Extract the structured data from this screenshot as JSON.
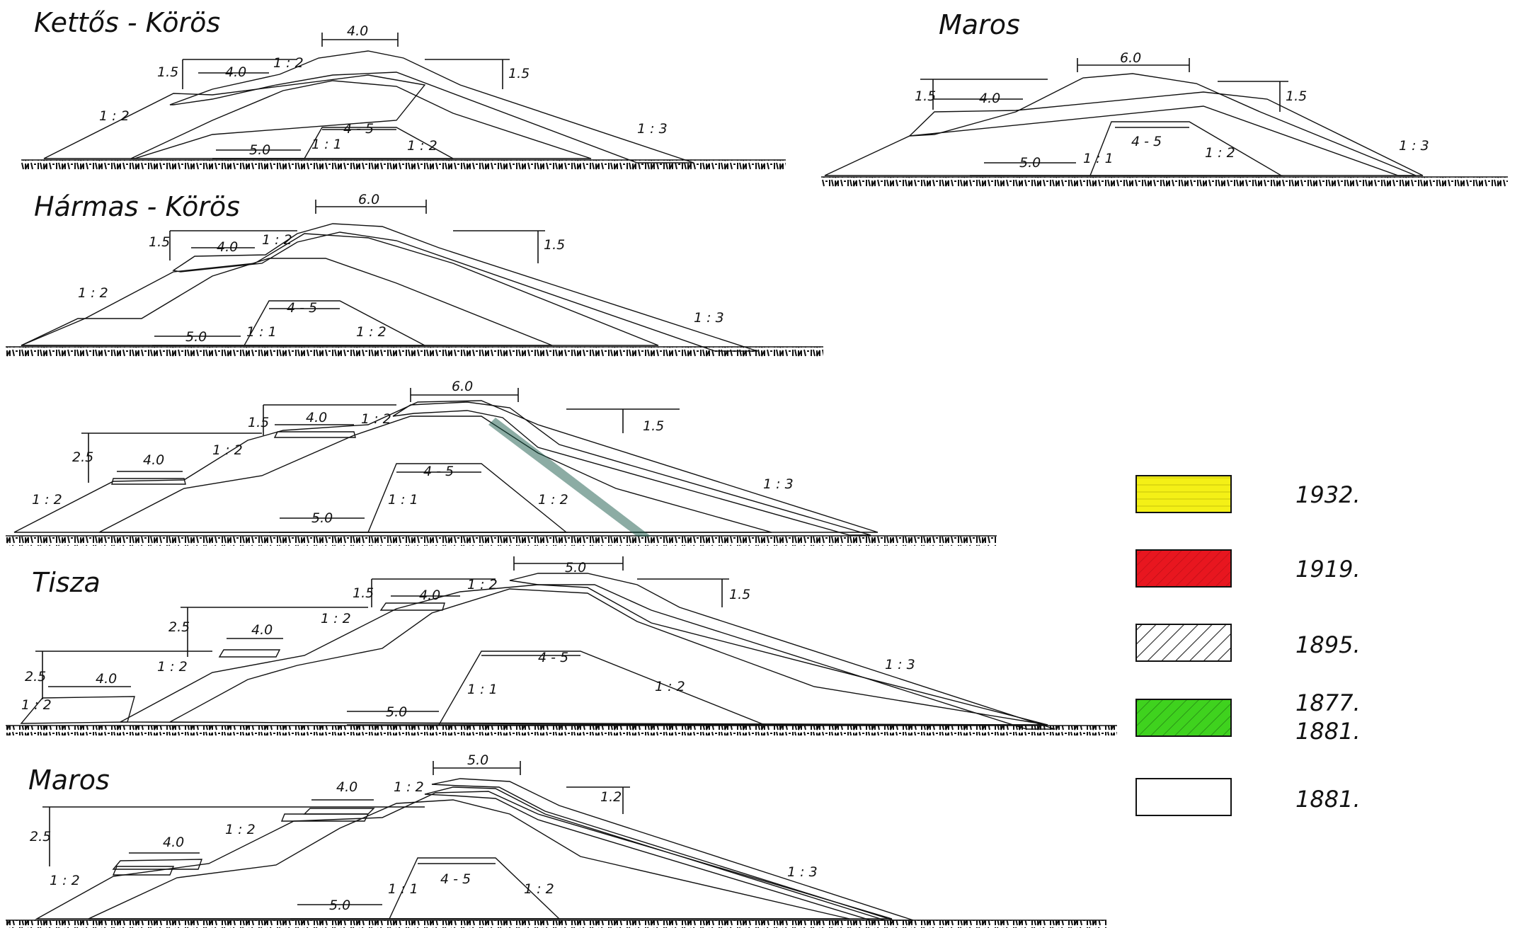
{
  "colors": {
    "y1932": "#f4f016",
    "y1919": "#e8161f",
    "y1895": "#ffffff",
    "y1877_1881": "#3fd21e",
    "y1881": "#ffffff",
    "hatch": "#1a1a1a",
    "ground": "#111111"
  },
  "titles": {
    "kettos": "Kettős - Körös",
    "maros_top": "Maros",
    "harmas": "Hármas - Körös",
    "tisza": "Tisza",
    "maros_bottom": "Maros"
  },
  "labels": {
    "d40": "4.0",
    "d50": "5.0",
    "d60": "6.0",
    "d15": "1.5",
    "d12": "1.2",
    "d25": "2.5",
    "d45": "4 - 5",
    "s12": "1 : 2",
    "s11": "1 : 1",
    "s13": "1 : 3"
  },
  "legend": [
    {
      "key": "y1932",
      "label": "1932.",
      "pattern": "yellow"
    },
    {
      "key": "y1919",
      "label": "1919.",
      "pattern": "red"
    },
    {
      "key": "y1895",
      "label": "1895.",
      "pattern": "hatch"
    },
    {
      "key": "y1877_1881",
      "label": "1877.\n1881.",
      "label1": "1877.",
      "label2": "1881.",
      "pattern": "green"
    },
    {
      "key": "y1881",
      "label": "1881.",
      "pattern": "white"
    }
  ]
}
